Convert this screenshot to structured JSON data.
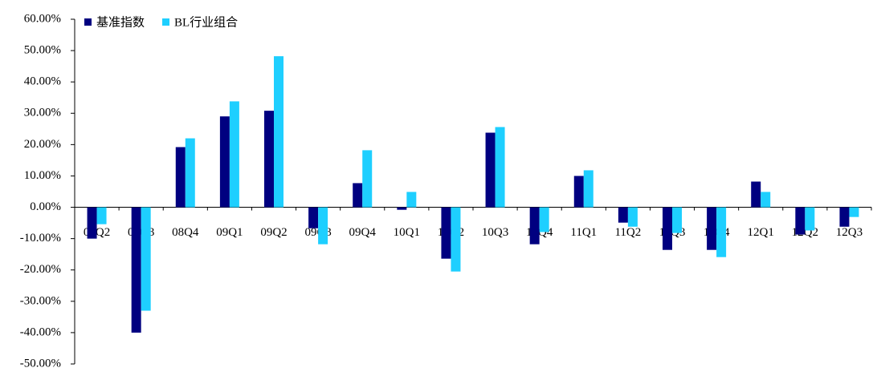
{
  "chart_data": {
    "type": "bar",
    "categories": [
      "08Q2",
      "08Q3",
      "08Q4",
      "09Q1",
      "09Q2",
      "09Q3",
      "09Q4",
      "10Q1",
      "10Q2",
      "10Q3",
      "10Q4",
      "11Q1",
      "11Q2",
      "11Q3",
      "11Q4",
      "12Q1",
      "12Q2",
      "12Q3"
    ],
    "series": [
      {
        "name": "基准指数",
        "color": "#000080",
        "values": [
          -10.0,
          -40.0,
          19.2,
          29.0,
          30.8,
          -6.7,
          7.7,
          -0.8,
          -16.4,
          23.8,
          -11.8,
          10.0,
          -4.9,
          -13.6,
          -13.6,
          8.2,
          -8.7,
          -6.2
        ]
      },
      {
        "name": "BL行业组合",
        "color": "#1ecfff",
        "values": [
          -5.4,
          -33.0,
          22.0,
          33.8,
          48.2,
          -11.8,
          18.2,
          4.9,
          -20.5,
          25.6,
          -7.9,
          11.8,
          -6.2,
          -8.2,
          -15.9,
          4.9,
          -7.4,
          -3.1
        ]
      }
    ],
    "ylim": [
      -50,
      60
    ],
    "yticks": [
      {
        "value": -50,
        "label": "-50.00%"
      },
      {
        "value": -40,
        "label": "-40.00%"
      },
      {
        "value": -30,
        "label": "-30.00%"
      },
      {
        "value": -20,
        "label": "-20.00%"
      },
      {
        "value": -10,
        "label": "-10.00%"
      },
      {
        "value": 0,
        "label": "0.00%"
      },
      {
        "value": 10,
        "label": "10.00%"
      },
      {
        "value": 20,
        "label": "20.00%"
      },
      {
        "value": 30,
        "label": "30.00%"
      },
      {
        "value": 40,
        "label": "40.00%"
      },
      {
        "value": 50,
        "label": "50.00%"
      },
      {
        "value": 60,
        "label": "60.00%"
      }
    ],
    "legend": "top-left"
  }
}
